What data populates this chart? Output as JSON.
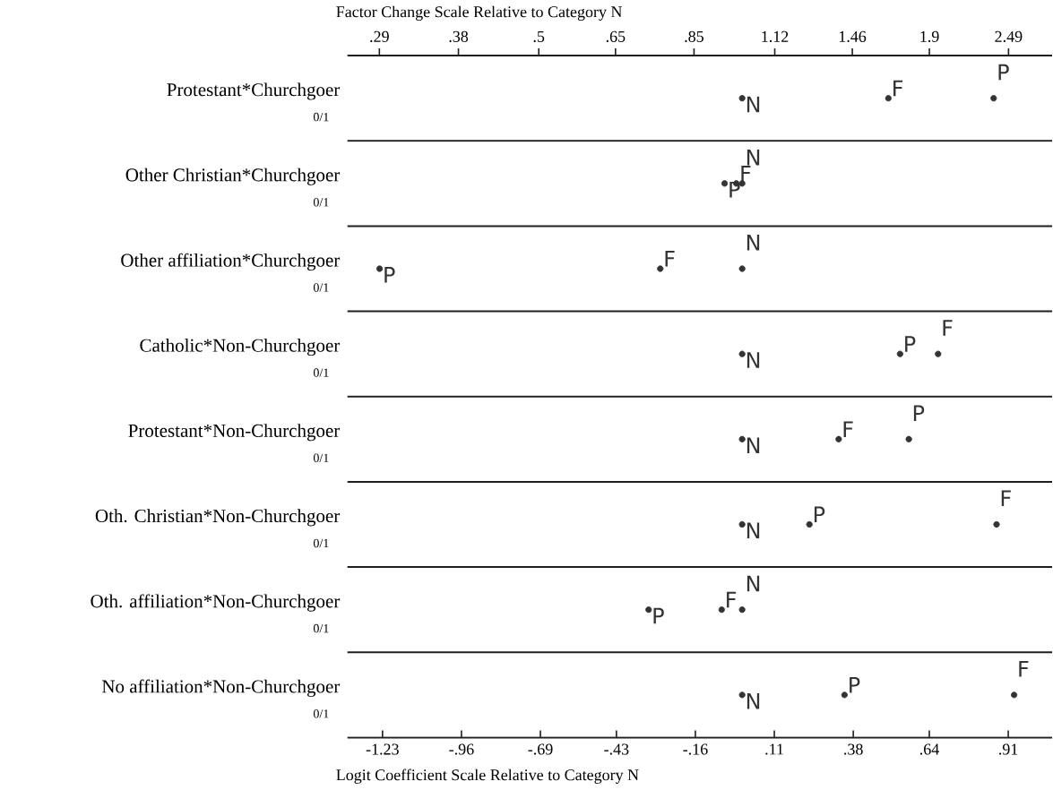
{
  "chart_data": {
    "type": "scatter",
    "orientation": "horizontal",
    "xlabel": "Logit Coefficient Scale Relative to Category N",
    "x2label": "Factor Change Scale Relative to Category N",
    "categories": [
      "Protestant*Churchgoer",
      "Other Christian*Churchgoer",
      "Other affiliation*Churchgoer",
      "Catholic*Non-Churchgoer",
      "Protestant*Non-Churchgoer",
      "Oth. Christian*Non-Churchgoer",
      "Oth. affiliation*Non-Churchgoer",
      "No affiliation*Non-Churchgoer"
    ],
    "series": [
      {
        "name": "N",
        "color": "#333333",
        "values": [
          0,
          0,
          0,
          0,
          0,
          0,
          0,
          0
        ]
      },
      {
        "name": "F",
        "color": "#333333",
        "values": [
          0.5,
          -0.02,
          -0.28,
          0.67,
          0.33,
          0.87,
          -0.07,
          0.93
        ]
      },
      {
        "name": "P",
        "color": "#333333",
        "values": [
          0.86,
          -0.06,
          -1.24,
          0.54,
          0.57,
          0.23,
          -0.32,
          0.35
        ]
      }
    ],
    "xlim": [
      -1.35,
      1.06
    ],
    "xticks": [
      {
        "value": -1.23,
        "label": "-1.23"
      },
      {
        "value": -0.96,
        "label": "-.96"
      },
      {
        "value": -0.69,
        "label": "-.69"
      },
      {
        "value": -0.43,
        "label": "-.43"
      },
      {
        "value": -0.16,
        "label": "-.16"
      },
      {
        "value": 0.11,
        "label": ".11"
      },
      {
        "value": 0.38,
        "label": ".38"
      },
      {
        "value": 0.64,
        "label": ".64"
      },
      {
        "value": 0.91,
        "label": ".91"
      }
    ],
    "x2lim": [
      0.26,
      2.89
    ],
    "x2ticks": [
      {
        "value": 0.29,
        "label": ".29"
      },
      {
        "value": 0.38,
        "label": ".38"
      },
      {
        "value": 0.5,
        "label": ".5"
      },
      {
        "value": 0.65,
        "label": ".65"
      },
      {
        "value": 0.85,
        "label": ".85"
      },
      {
        "value": 1.12,
        "label": "1.12"
      },
      {
        "value": 1.46,
        "label": "1.46"
      },
      {
        "value": 1.9,
        "label": "1.9"
      },
      {
        "value": 2.49,
        "label": "2.49"
      }
    ],
    "log": "x2",
    "grid": "y",
    "annotations": [
      "0/1",
      "0/1",
      "0/1",
      "0/1",
      "0/1",
      "0/1",
      "0/1",
      "0/1"
    ]
  }
}
